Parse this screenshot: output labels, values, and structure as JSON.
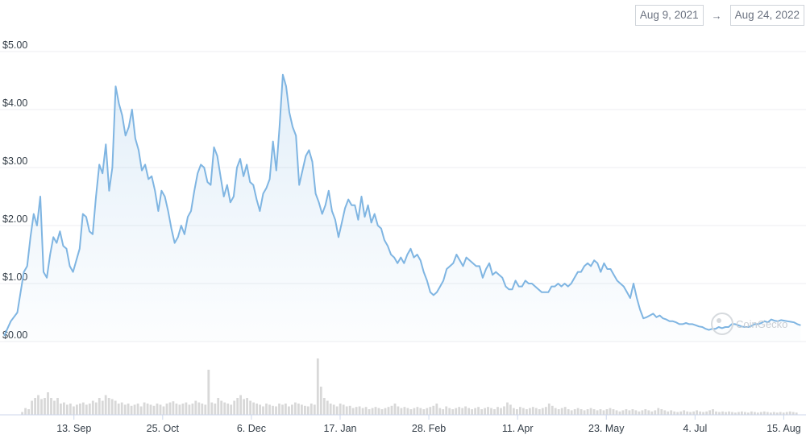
{
  "range": {
    "start": "Aug 9, 2021",
    "arrow": "→",
    "end": "Aug 24, 2022"
  },
  "watermark": "CoinGecko",
  "chart_data": {
    "type": "area",
    "title": "",
    "xlabel": "",
    "ylabel": "",
    "ylim": [
      0,
      5
    ],
    "y_ticks": [
      "$0.00",
      "$1.00",
      "$2.00",
      "$3.00",
      "$4.00",
      "$5.00"
    ],
    "y_tick_values": [
      0,
      1,
      2,
      3,
      4,
      5
    ],
    "x_ticks": [
      "13. Sep",
      "25. Oct",
      "6. Dec",
      "17. Jan",
      "28. Feb",
      "11. Apr",
      "23. May",
      "4. Jul",
      "15. Aug"
    ],
    "x_tick_days": [
      35,
      77,
      119,
      161,
      203,
      245,
      287,
      329,
      371
    ],
    "x_range_days": [
      0,
      380
    ],
    "grid": true,
    "line_color": "#7fb5e2",
    "volume_color": "#d8d8d8",
    "series": [
      {
        "values": [
          [
            0,
            0.1
          ],
          [
            2,
            0.35
          ],
          [
            4,
            0.5
          ],
          [
            6,
            1.2
          ],
          [
            7,
            1.3
          ],
          [
            8,
            1.8
          ],
          [
            9,
            2.2
          ],
          [
            10,
            2.0
          ],
          [
            11,
            2.5
          ],
          [
            12,
            1.2
          ],
          [
            13,
            1.1
          ],
          [
            14,
            1.5
          ],
          [
            15,
            1.8
          ],
          [
            16,
            1.7
          ],
          [
            17,
            1.9
          ],
          [
            18,
            1.65
          ],
          [
            19,
            1.6
          ],
          [
            20,
            1.3
          ],
          [
            21,
            1.2
          ],
          [
            22,
            1.4
          ],
          [
            23,
            1.6
          ],
          [
            24,
            2.2
          ],
          [
            25,
            2.15
          ],
          [
            26,
            1.9
          ],
          [
            27,
            1.85
          ],
          [
            28,
            2.5
          ],
          [
            29,
            3.05
          ],
          [
            30,
            2.9
          ],
          [
            31,
            3.4
          ],
          [
            32,
            2.6
          ],
          [
            33,
            3.0
          ],
          [
            34,
            4.4
          ],
          [
            35,
            4.1
          ],
          [
            36,
            3.9
          ],
          [
            37,
            3.55
          ],
          [
            38,
            3.7
          ],
          [
            39,
            4.0
          ],
          [
            40,
            3.5
          ],
          [
            41,
            3.3
          ],
          [
            42,
            2.95
          ],
          [
            43,
            3.05
          ],
          [
            44,
            2.8
          ],
          [
            45,
            2.85
          ],
          [
            46,
            2.6
          ],
          [
            47,
            2.25
          ],
          [
            48,
            2.6
          ],
          [
            49,
            2.5
          ],
          [
            50,
            2.25
          ],
          [
            51,
            1.95
          ],
          [
            52,
            1.7
          ],
          [
            53,
            1.8
          ],
          [
            54,
            2.0
          ],
          [
            55,
            1.85
          ],
          [
            56,
            2.15
          ],
          [
            57,
            2.25
          ],
          [
            58,
            2.6
          ],
          [
            59,
            2.9
          ],
          [
            60,
            3.05
          ],
          [
            61,
            3.0
          ],
          [
            62,
            2.75
          ],
          [
            63,
            2.7
          ],
          [
            64,
            3.35
          ],
          [
            65,
            3.2
          ],
          [
            66,
            2.85
          ],
          [
            67,
            2.5
          ],
          [
            68,
            2.7
          ],
          [
            69,
            2.4
          ],
          [
            70,
            2.5
          ],
          [
            71,
            3.0
          ],
          [
            72,
            3.15
          ],
          [
            73,
            2.85
          ],
          [
            74,
            3.05
          ],
          [
            75,
            2.75
          ],
          [
            76,
            2.7
          ],
          [
            77,
            2.45
          ],
          [
            78,
            2.25
          ],
          [
            79,
            2.55
          ],
          [
            80,
            2.65
          ],
          [
            81,
            2.8
          ],
          [
            82,
            3.45
          ],
          [
            83,
            2.95
          ],
          [
            84,
            3.7
          ],
          [
            85,
            4.6
          ],
          [
            86,
            4.4
          ],
          [
            87,
            3.95
          ],
          [
            88,
            3.7
          ],
          [
            89,
            3.55
          ],
          [
            90,
            2.7
          ],
          [
            91,
            2.95
          ],
          [
            92,
            3.2
          ],
          [
            93,
            3.3
          ],
          [
            94,
            3.1
          ],
          [
            95,
            2.55
          ],
          [
            96,
            2.4
          ],
          [
            97,
            2.2
          ],
          [
            98,
            2.35
          ],
          [
            99,
            2.6
          ],
          [
            100,
            2.25
          ],
          [
            101,
            2.1
          ],
          [
            102,
            1.8
          ],
          [
            103,
            2.05
          ],
          [
            104,
            2.3
          ],
          [
            105,
            2.45
          ],
          [
            106,
            2.35
          ],
          [
            107,
            2.35
          ],
          [
            108,
            2.1
          ],
          [
            109,
            2.5
          ],
          [
            110,
            2.15
          ],
          [
            111,
            2.35
          ],
          [
            112,
            2.05
          ],
          [
            113,
            2.2
          ],
          [
            114,
            2.0
          ],
          [
            115,
            1.95
          ],
          [
            116,
            1.75
          ],
          [
            117,
            1.65
          ],
          [
            118,
            1.5
          ],
          [
            119,
            1.45
          ],
          [
            120,
            1.35
          ],
          [
            121,
            1.45
          ],
          [
            122,
            1.35
          ],
          [
            123,
            1.5
          ],
          [
            124,
            1.6
          ],
          [
            125,
            1.45
          ],
          [
            126,
            1.5
          ],
          [
            127,
            1.4
          ],
          [
            128,
            1.2
          ],
          [
            129,
            1.05
          ],
          [
            130,
            0.85
          ],
          [
            131,
            0.8
          ],
          [
            132,
            0.85
          ],
          [
            133,
            0.95
          ],
          [
            134,
            1.05
          ],
          [
            135,
            1.25
          ],
          [
            136,
            1.3
          ],
          [
            137,
            1.35
          ],
          [
            138,
            1.5
          ],
          [
            139,
            1.4
          ],
          [
            140,
            1.3
          ],
          [
            141,
            1.45
          ],
          [
            142,
            1.4
          ],
          [
            143,
            1.35
          ],
          [
            144,
            1.3
          ],
          [
            145,
            1.3
          ],
          [
            146,
            1.1
          ],
          [
            147,
            1.25
          ],
          [
            148,
            1.35
          ],
          [
            149,
            1.15
          ],
          [
            150,
            1.2
          ],
          [
            151,
            1.15
          ],
          [
            152,
            1.1
          ],
          [
            153,
            0.95
          ],
          [
            154,
            0.9
          ],
          [
            155,
            0.9
          ],
          [
            156,
            1.05
          ],
          [
            157,
            0.95
          ],
          [
            158,
            0.95
          ],
          [
            159,
            1.05
          ],
          [
            160,
            1.0
          ],
          [
            161,
            1.0
          ],
          [
            162,
            0.95
          ],
          [
            163,
            0.9
          ],
          [
            164,
            0.85
          ],
          [
            165,
            0.85
          ],
          [
            166,
            0.85
          ],
          [
            167,
            0.95
          ],
          [
            168,
            0.95
          ],
          [
            169,
            1.0
          ],
          [
            170,
            0.95
          ],
          [
            171,
            1.0
          ],
          [
            172,
            0.95
          ],
          [
            173,
            1.0
          ],
          [
            174,
            1.1
          ],
          [
            175,
            1.2
          ],
          [
            176,
            1.2
          ],
          [
            177,
            1.3
          ],
          [
            178,
            1.35
          ],
          [
            179,
            1.3
          ],
          [
            180,
            1.4
          ],
          [
            181,
            1.35
          ],
          [
            182,
            1.2
          ],
          [
            183,
            1.35
          ],
          [
            184,
            1.25
          ],
          [
            185,
            1.25
          ],
          [
            186,
            1.15
          ],
          [
            187,
            1.05
          ],
          [
            188,
            1.0
          ],
          [
            189,
            0.95
          ],
          [
            190,
            0.85
          ],
          [
            191,
            0.75
          ],
          [
            192,
            1.0
          ],
          [
            193,
            0.75
          ],
          [
            194,
            0.55
          ],
          [
            195,
            0.4
          ],
          [
            196,
            0.42
          ],
          [
            197,
            0.45
          ],
          [
            198,
            0.48
          ],
          [
            199,
            0.42
          ],
          [
            200,
            0.45
          ],
          [
            201,
            0.4
          ],
          [
            202,
            0.38
          ],
          [
            203,
            0.35
          ],
          [
            204,
            0.35
          ],
          [
            205,
            0.33
          ],
          [
            206,
            0.3
          ],
          [
            207,
            0.3
          ],
          [
            208,
            0.32
          ],
          [
            209,
            0.3
          ],
          [
            210,
            0.3
          ],
          [
            211,
            0.28
          ],
          [
            212,
            0.26
          ],
          [
            213,
            0.25
          ],
          [
            214,
            0.22
          ],
          [
            215,
            0.2
          ],
          [
            216,
            0.22
          ],
          [
            217,
            0.22
          ],
          [
            218,
            0.25
          ],
          [
            219,
            0.23
          ],
          [
            220,
            0.25
          ],
          [
            221,
            0.25
          ],
          [
            222,
            0.3
          ],
          [
            223,
            0.3
          ],
          [
            224,
            0.28
          ],
          [
            225,
            0.26
          ],
          [
            226,
            0.25
          ],
          [
            227,
            0.25
          ],
          [
            228,
            0.27
          ],
          [
            229,
            0.3
          ],
          [
            230,
            0.3
          ],
          [
            231,
            0.32
          ],
          [
            232,
            0.35
          ],
          [
            233,
            0.33
          ],
          [
            234,
            0.38
          ],
          [
            235,
            0.36
          ],
          [
            236,
            0.35
          ],
          [
            237,
            0.37
          ],
          [
            238,
            0.36
          ],
          [
            239,
            0.35
          ],
          [
            240,
            0.34
          ],
          [
            241,
            0.33
          ],
          [
            242,
            0.3
          ],
          [
            243,
            0.28
          ]
        ]
      }
    ],
    "volume": [
      0.05,
      0.12,
      0.1,
      0.25,
      0.3,
      0.35,
      0.28,
      0.3,
      0.4,
      0.3,
      0.25,
      0.3,
      0.2,
      0.22,
      0.18,
      0.2,
      0.15,
      0.18,
      0.2,
      0.22,
      0.18,
      0.2,
      0.25,
      0.22,
      0.3,
      0.25,
      0.35,
      0.3,
      0.28,
      0.25,
      0.2,
      0.22,
      0.18,
      0.2,
      0.16,
      0.18,
      0.2,
      0.15,
      0.22,
      0.2,
      0.18,
      0.16,
      0.2,
      0.18,
      0.15,
      0.2,
      0.22,
      0.24,
      0.2,
      0.18,
      0.2,
      0.22,
      0.18,
      0.2,
      0.25,
      0.22,
      0.2,
      0.18,
      0.8,
      0.22,
      0.2,
      0.3,
      0.25,
      0.22,
      0.2,
      0.18,
      0.25,
      0.3,
      0.35,
      0.28,
      0.3,
      0.25,
      0.22,
      0.2,
      0.18,
      0.15,
      0.2,
      0.18,
      0.16,
      0.15,
      0.2,
      0.18,
      0.2,
      0.15,
      0.18,
      0.22,
      0.2,
      0.18,
      0.16,
      0.15,
      0.2,
      0.18,
      1.0,
      0.5,
      0.3,
      0.25,
      0.2,
      0.18,
      0.15,
      0.2,
      0.18,
      0.15,
      0.16,
      0.12,
      0.14,
      0.15,
      0.12,
      0.14,
      0.1,
      0.12,
      0.14,
      0.12,
      0.1,
      0.12,
      0.14,
      0.16,
      0.2,
      0.15,
      0.12,
      0.14,
      0.12,
      0.1,
      0.12,
      0.14,
      0.12,
      0.1,
      0.12,
      0.14,
      0.16,
      0.2,
      0.12,
      0.1,
      0.15,
      0.12,
      0.1,
      0.12,
      0.14,
      0.12,
      0.15,
      0.12,
      0.1,
      0.12,
      0.14,
      0.1,
      0.12,
      0.14,
      0.12,
      0.1,
      0.14,
      0.12,
      0.15,
      0.22,
      0.18,
      0.12,
      0.1,
      0.14,
      0.12,
      0.1,
      0.12,
      0.14,
      0.12,
      0.1,
      0.12,
      0.14,
      0.2,
      0.16,
      0.12,
      0.1,
      0.12,
      0.14,
      0.1,
      0.08,
      0.1,
      0.12,
      0.1,
      0.08,
      0.1,
      0.12,
      0.1,
      0.08,
      0.1,
      0.08,
      0.1,
      0.12,
      0.1,
      0.08,
      0.06,
      0.08,
      0.1,
      0.08,
      0.1,
      0.08,
      0.06,
      0.08,
      0.1,
      0.08,
      0.06,
      0.08,
      0.12,
      0.1,
      0.08,
      0.06,
      0.08,
      0.06,
      0.05,
      0.06,
      0.08,
      0.06,
      0.05,
      0.06,
      0.08,
      0.06,
      0.05,
      0.06,
      0.08,
      0.1,
      0.06,
      0.05,
      0.06,
      0.05,
      0.06,
      0.05,
      0.04,
      0.05,
      0.06,
      0.05,
      0.04,
      0.06,
      0.05,
      0.04,
      0.05,
      0.06,
      0.05,
      0.04,
      0.05,
      0.04,
      0.05,
      0.04,
      0.05,
      0.06,
      0.05,
      0.04
    ]
  }
}
